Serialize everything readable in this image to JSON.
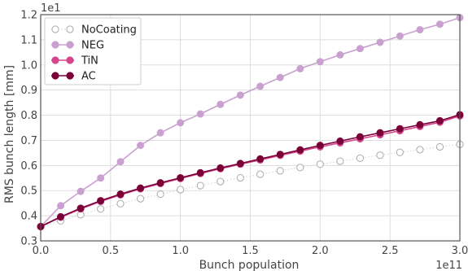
{
  "chart_data": {
    "type": "line",
    "xlabel": "Bunch population",
    "ylabel": "RMS bunch length [mm]",
    "x_exponent_label": "1e11",
    "y_exponent_label": "1e1",
    "xlim": [
      0.0,
      3.0
    ],
    "ylim": [
      0.3,
      1.2
    ],
    "x_ticks": [
      "0.0",
      "0.5",
      "1.0",
      "1.5",
      "2.0",
      "2.5",
      "3.0"
    ],
    "y_ticks": [
      "0.3",
      "0.4",
      "0.5",
      "0.6",
      "0.7",
      "0.8",
      "0.9",
      "1.0",
      "1.1",
      "1.2"
    ],
    "grid": true,
    "legend_position": "top-left",
    "x": [
      0.0,
      0.143,
      0.286,
      0.429,
      0.571,
      0.714,
      0.857,
      1.0,
      1.143,
      1.286,
      1.429,
      1.571,
      1.714,
      1.857,
      2.0,
      2.143,
      2.286,
      2.429,
      2.571,
      2.714,
      2.857,
      3.0
    ],
    "series": [
      {
        "name": "NoCoating",
        "color": "#aaaaaa",
        "marker": "open-circle",
        "line": "dotted",
        "values": [
          0.357,
          0.38,
          0.404,
          0.427,
          0.448,
          0.468,
          0.486,
          0.504,
          0.52,
          0.536,
          0.551,
          0.565,
          0.579,
          0.592,
          0.605,
          0.617,
          0.629,
          0.641,
          0.652,
          0.663,
          0.674,
          0.684
        ]
      },
      {
        "name": "NEG",
        "color": "#c9a0d0",
        "marker": "filled-circle",
        "line": "solid",
        "values": [
          0.357,
          0.44,
          0.497,
          0.55,
          0.615,
          0.68,
          0.73,
          0.77,
          0.805,
          0.843,
          0.88,
          0.915,
          0.95,
          0.985,
          1.013,
          1.04,
          1.065,
          1.09,
          1.115,
          1.14,
          1.162,
          1.188
        ]
      },
      {
        "name": "TiN",
        "color": "#d4478c",
        "marker": "filled-circle",
        "line": "solid",
        "values": [
          0.357,
          0.394,
          0.427,
          0.457,
          0.483,
          0.507,
          0.528,
          0.548,
          0.568,
          0.587,
          0.605,
          0.622,
          0.64,
          0.657,
          0.674,
          0.69,
          0.706,
          0.722,
          0.738,
          0.755,
          0.772,
          0.797
        ]
      },
      {
        "name": "AC",
        "color": "#7a0038",
        "marker": "filled-circle",
        "line": "solid",
        "values": [
          0.357,
          0.396,
          0.43,
          0.46,
          0.486,
          0.51,
          0.531,
          0.551,
          0.571,
          0.59,
          0.608,
          0.626,
          0.644,
          0.662,
          0.68,
          0.697,
          0.714,
          0.73,
          0.746,
          0.762,
          0.778,
          0.802
        ]
      }
    ]
  }
}
